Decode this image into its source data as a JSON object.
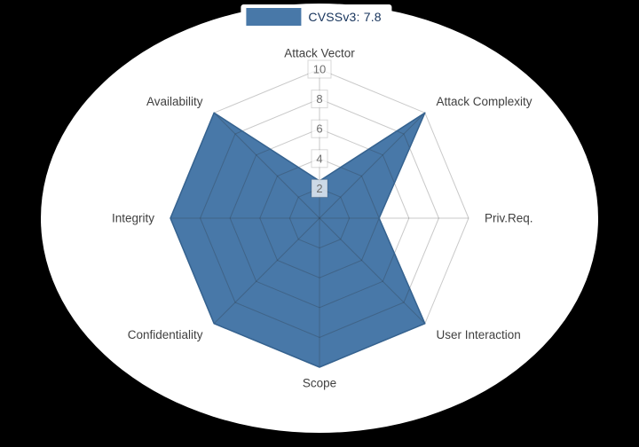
{
  "background": {
    "page": "#000000",
    "panel": "#ffffff"
  },
  "legend": {
    "label": "CVSSv3: 7.8",
    "swatch_color": "#4878a8",
    "text_color": "#16335b"
  },
  "chart_data": {
    "type": "radar",
    "title": "",
    "categories": [
      "Attack Vector",
      "Attack Complexity",
      "Priv.Req.",
      "User Interaction",
      "Scope",
      "Confidentiality",
      "Integrity",
      "Availability"
    ],
    "series": [
      {
        "name": "CVSSv3: 7.8",
        "values": [
          2.5,
          10,
          4,
          10,
          10,
          10,
          10,
          10
        ],
        "fill_color": "#4878a8",
        "line_color": "#35628f"
      }
    ],
    "ticks": [
      2,
      4,
      6,
      8,
      10
    ],
    "rmin": 0,
    "rmax": 10,
    "grid": true,
    "grid_shape": "polygon",
    "grid_color": "rgba(40,40,40,0.25)",
    "axis_label_color": "#3f3f3f",
    "tick_label_color": "#6f6f6f",
    "tick_backdrop": "rgba(255,255,255,0.72)",
    "tick_backdrop_border": "rgba(0,0,0,0.15)",
    "legend_position": "top-center",
    "start_axis": "top",
    "direction": "clockwise"
  }
}
